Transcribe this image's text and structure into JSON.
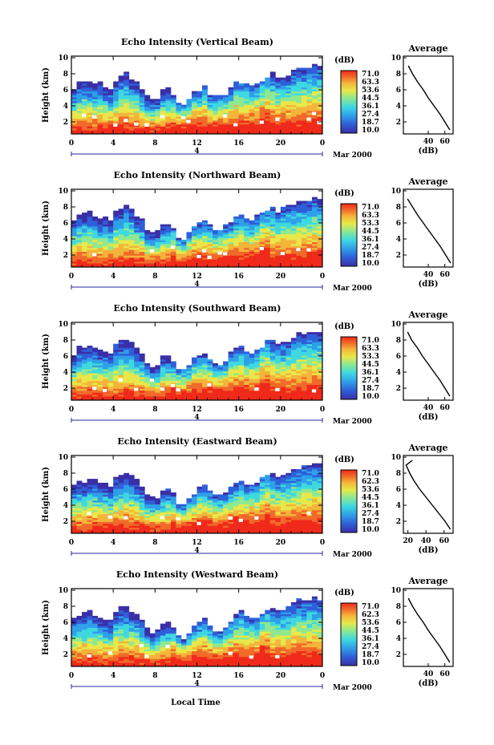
{
  "chart_data": [
    {
      "type": "heatmap",
      "title": "Echo Intensity (Vertical Beam)",
      "ylabel": "Height (km)",
      "x_ticks": [
        "0",
        "4",
        "8",
        "12",
        "16",
        "20",
        "0"
      ],
      "y_ticks": [
        "2",
        "4",
        "6",
        "8",
        "10"
      ],
      "ylim": [
        0.5,
        10.2
      ],
      "xlim": [
        0,
        24
      ],
      "date_label": "4",
      "date_suffix": "Mar 2000",
      "colorbar_label": "(dB)",
      "colorbar_ticks": [
        "71.0",
        "63.3",
        "53.6",
        "44.5",
        "36.1",
        "27.4",
        "18.7",
        "10.0"
      ],
      "average": {
        "title": "Average",
        "xlabel": "(dB)",
        "x_ticks": [
          "40",
          "60"
        ],
        "xlim": [
          10,
          70
        ],
        "y_ticks": [
          "2",
          "4",
          "6",
          "8",
          "10"
        ],
        "heights": [
          1.0,
          2.0,
          3.0,
          4.0,
          5.0,
          6.0,
          7.0,
          8.0,
          9.0
        ],
        "values": [
          66,
          60,
          54,
          47,
          40,
          34,
          27,
          21,
          16
        ]
      }
    },
    {
      "type": "heatmap",
      "title": "Echo Intensity (Northward Beam)",
      "ylabel": "Height (km)",
      "x_ticks": [
        "0",
        "4",
        "8",
        "12",
        "16",
        "20",
        "0"
      ],
      "y_ticks": [
        "2",
        "4",
        "6",
        "8",
        "10"
      ],
      "ylim": [
        0.5,
        10.2
      ],
      "xlim": [
        0,
        24
      ],
      "date_label": "4",
      "date_suffix": "Mar 2000",
      "colorbar_label": "(dB)",
      "colorbar_ticks": [
        "71.0",
        "63.3",
        "53.3",
        "44.5",
        "36.1",
        "27.4",
        "18.7",
        "10.0"
      ],
      "average": {
        "title": "Average",
        "xlabel": "(dB)",
        "x_ticks": [
          "40",
          "60"
        ],
        "xlim": [
          10,
          70
        ],
        "y_ticks": [
          "2",
          "4",
          "6",
          "8",
          "10"
        ],
        "heights": [
          1.0,
          2.0,
          3.0,
          4.0,
          5.0,
          6.0,
          7.0,
          8.0,
          9.0
        ],
        "values": [
          67,
          61,
          55,
          48,
          41,
          34,
          27,
          21,
          15
        ]
      }
    },
    {
      "type": "heatmap",
      "title": "Echo Intensity (Southward Beam)",
      "ylabel": "Height (km)",
      "x_ticks": [
        "0",
        "4",
        "8",
        "12",
        "16",
        "20",
        "0"
      ],
      "y_ticks": [
        "2",
        "4",
        "6",
        "8",
        "10"
      ],
      "ylim": [
        0.5,
        10.2
      ],
      "xlim": [
        0,
        24
      ],
      "date_label": "4",
      "date_suffix": "Mar 2000",
      "colorbar_label": "(dB)",
      "colorbar_ticks": [
        "71.0",
        "63.3",
        "53.3",
        "44.5",
        "36.1",
        "27.4",
        "18.7",
        "10.0"
      ],
      "average": {
        "title": "Average",
        "xlabel": "(dB)",
        "x_ticks": [
          "40",
          "60"
        ],
        "xlim": [
          10,
          70
        ],
        "y_ticks": [
          "2",
          "4",
          "6",
          "8",
          "10"
        ],
        "heights": [
          1.0,
          2.0,
          3.0,
          4.0,
          5.0,
          6.0,
          7.0,
          8.0,
          9.0
        ],
        "values": [
          66,
          60,
          54,
          47,
          40,
          33,
          27,
          20,
          15
        ]
      }
    },
    {
      "type": "heatmap",
      "title": "Echo Intensity (Eastward Beam)",
      "ylabel": "Height (km)",
      "x_ticks": [
        "0",
        "4",
        "8",
        "12",
        "16",
        "20",
        "0"
      ],
      "y_ticks": [
        "2",
        "4",
        "6",
        "8",
        "10"
      ],
      "ylim": [
        0.5,
        10.2
      ],
      "xlim": [
        0,
        24
      ],
      "date_label": "4",
      "date_suffix": "Mar 2000",
      "colorbar_label": "(dB)",
      "colorbar_ticks": [
        "71.0",
        "62.3",
        "53.6",
        "44.5",
        "36.1",
        "27.4",
        "18.7",
        "10.0"
      ],
      "average": {
        "title": "Average",
        "xlabel": "(dB)",
        "x_ticks": [
          "20",
          "40",
          "60"
        ],
        "xlim": [
          15,
          70
        ],
        "y_ticks": [
          "2",
          "4",
          "6",
          "8",
          "10"
        ],
        "heights": [
          1.0,
          2.0,
          3.0,
          4.0,
          5.0,
          6.0,
          7.0,
          8.0,
          9.0,
          9.6
        ],
        "values": [
          67,
          61,
          54,
          47,
          40,
          33,
          27,
          22,
          18,
          25
        ]
      }
    },
    {
      "type": "heatmap",
      "title": "Echo Intensity (Westward Beam)",
      "ylabel": "Height (km)",
      "x_ticks": [
        "0",
        "4",
        "8",
        "12",
        "16",
        "20",
        "0"
      ],
      "y_ticks": [
        "2",
        "4",
        "6",
        "8",
        "10"
      ],
      "ylim": [
        0.5,
        10.2
      ],
      "xlim": [
        0,
        24
      ],
      "date_label": "4",
      "date_suffix": "Mar 2000",
      "colorbar_label": "(dB)",
      "colorbar_ticks": [
        "71.0",
        "62.3",
        "53.6",
        "44.5",
        "36.1",
        "27.4",
        "18.7",
        "10.0"
      ],
      "average": {
        "title": "Average",
        "xlabel": "(dB)",
        "x_ticks": [
          "40",
          "60"
        ],
        "xlim": [
          10,
          70
        ],
        "y_ticks": [
          "2",
          "4",
          "6",
          "8",
          "10"
        ],
        "heights": [
          1.0,
          2.0,
          3.0,
          4.0,
          5.0,
          6.0,
          7.0,
          8.0,
          9.0
        ],
        "values": [
          66,
          60,
          54,
          47,
          40,
          34,
          27,
          21,
          16
        ]
      }
    }
  ],
  "xlabel_bottom": "Local Time",
  "colors": {
    "colormap": [
      "#3a2fa8",
      "#2f5fd8",
      "#2fa0e8",
      "#3fd8e0",
      "#8fe890",
      "#e8e84a",
      "#f4b43a",
      "#f06a2a",
      "#f02a1a"
    ]
  }
}
